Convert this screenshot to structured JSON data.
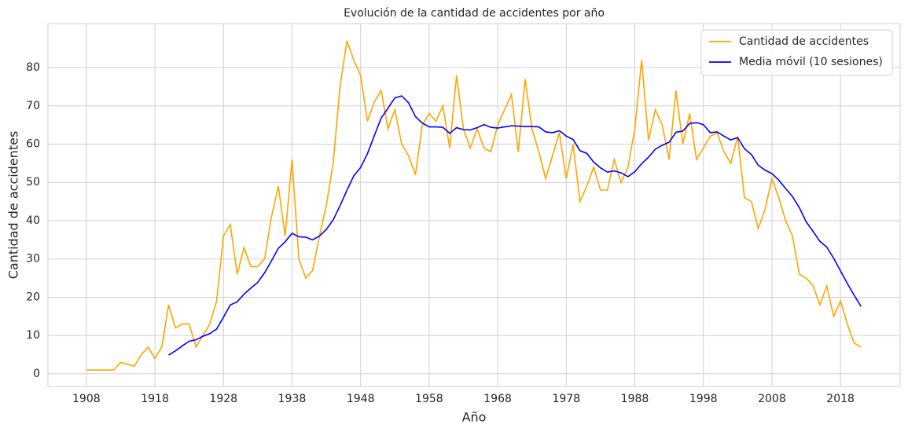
{
  "chart_data": {
    "type": "line",
    "title": "Evolución de la cantidad de accidentes por año",
    "xlabel": "Año",
    "ylabel": "Cantidad de accidentes",
    "x": [
      1908,
      1912,
      1913,
      1915,
      1916,
      1917,
      1918,
      1919,
      1920,
      1921,
      1922,
      1923,
      1924,
      1925,
      1926,
      1927,
      1928,
      1929,
      1930,
      1931,
      1932,
      1933,
      1934,
      1935,
      1936,
      1937,
      1938,
      1939,
      1940,
      1941,
      1942,
      1943,
      1944,
      1945,
      1946,
      1947,
      1948,
      1949,
      1950,
      1951,
      1952,
      1953,
      1954,
      1955,
      1956,
      1957,
      1958,
      1959,
      1960,
      1961,
      1962,
      1963,
      1964,
      1965,
      1966,
      1967,
      1968,
      1969,
      1970,
      1971,
      1972,
      1973,
      1974,
      1975,
      1976,
      1977,
      1978,
      1979,
      1980,
      1981,
      1982,
      1983,
      1984,
      1985,
      1986,
      1987,
      1988,
      1989,
      1990,
      1991,
      1992,
      1993,
      1994,
      1995,
      1996,
      1997,
      1998,
      1999,
      2000,
      2001,
      2002,
      2003,
      2004,
      2005,
      2006,
      2007,
      2008,
      2009,
      2010,
      2011,
      2012,
      2013,
      2014,
      2015,
      2016,
      2017,
      2018,
      2019,
      2020,
      2021
    ],
    "series": [
      {
        "name": "Cantidad de accidentes",
        "color": "#ffa500",
        "values": [
          1,
          1,
          3,
          2,
          5,
          7,
          4,
          7,
          18,
          12,
          13,
          13,
          7,
          10,
          13,
          19,
          36,
          39,
          26,
          33,
          28,
          28,
          30,
          41,
          49,
          36,
          56,
          30,
          25,
          27,
          36,
          44,
          55,
          75,
          87,
          82,
          78,
          66,
          71,
          74,
          64,
          69,
          60,
          57,
          52,
          65,
          68,
          66,
          70,
          59,
          78,
          64,
          59,
          64,
          59,
          58,
          65,
          69,
          73,
          58,
          77,
          64,
          58,
          51,
          57,
          63,
          51,
          60,
          45,
          49,
          54,
          48,
          48,
          56,
          50,
          54,
          64,
          82,
          61,
          69,
          65,
          56,
          74,
          60,
          68,
          56,
          59,
          62,
          63,
          58,
          55,
          62,
          46,
          45,
          38,
          43,
          51,
          46,
          40,
          36,
          26,
          25,
          23,
          18,
          23,
          15,
          19,
          13,
          8,
          7
        ]
      },
      {
        "name": "Media móvil (10 sesiones)",
        "color": "#0000ff",
        "values": [
          null,
          null,
          null,
          null,
          null,
          null,
          null,
          null,
          4.9,
          6,
          7.3,
          8.5,
          8.9,
          9.8,
          10.5,
          11.7,
          14.8,
          18,
          18.8,
          20.8,
          22.4,
          23.9,
          26.4,
          29.5,
          32.8,
          34.5,
          36.7,
          35.8,
          35.7,
          35,
          36,
          37.7,
          40.2,
          43.9,
          47.9,
          51.7,
          53.9,
          57.5,
          62.2,
          66.8,
          69.4,
          72.1,
          72.6,
          70.8,
          67.2,
          65.5,
          64.5,
          64.5,
          64.4,
          62.8,
          64.3,
          63.8,
          63.7,
          64.3,
          65.1,
          64.4,
          64.2,
          64.5,
          64.8,
          64.7,
          64.6,
          64.6,
          64.5,
          63.2,
          63,
          63.5,
          62.1,
          61.2,
          58.3,
          57.6,
          55.3,
          53.8,
          52.7,
          53,
          52.5,
          51.5,
          52.8,
          54.9,
          56.6,
          58.7,
          59.7,
          60.5,
          63.1,
          63.4,
          65.4,
          65.6,
          65.1,
          63,
          63.2,
          62.1,
          61.1,
          61.7,
          58.8,
          57.3,
          54.5,
          53.2,
          52.3,
          50.6,
          48.4,
          46.3,
          43.4,
          39.7,
          37.2,
          34.6,
          33.1,
          30.2,
          26.9,
          23.6,
          20.5,
          17.6
        ]
      }
    ],
    "xlim": [
      1902.4,
      2026.7
    ],
    "ylim": [
      -3.3,
      91.5
    ],
    "xticks": [
      1908,
      1918,
      1928,
      1938,
      1948,
      1958,
      1968,
      1978,
      1988,
      1998,
      2008,
      2018
    ],
    "yticks": [
      0,
      10,
      20,
      30,
      40,
      50,
      60,
      70,
      80
    ],
    "grid": true,
    "legend": "upper right"
  }
}
